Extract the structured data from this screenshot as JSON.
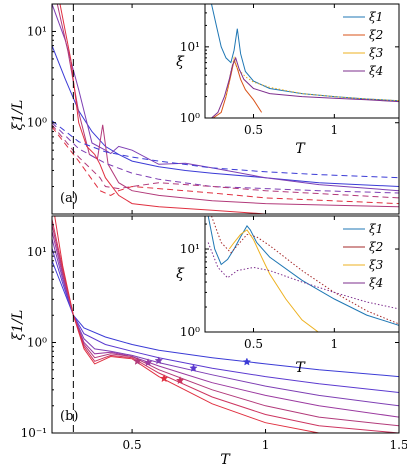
{
  "chart_data": [
    {
      "id": "a",
      "type": "line",
      "panel_label": "(a)",
      "ylabel": "ξ1/L",
      "ylog": true,
      "xlim": [
        0.2,
        1.5
      ],
      "ylim": [
        0.1,
        20
      ],
      "yticks": [
        {
          "value": 10,
          "label": "10¹"
        },
        {
          "value": 1,
          "label": "10⁰"
        }
      ],
      "xticks": [
        0.5,
        1,
        1.5
      ],
      "vline_x": 0.28,
      "series": [
        {
          "style": "solid",
          "color": "#3b3bd6",
          "x": [
            0.2,
            0.25,
            0.3,
            0.35,
            0.4,
            0.45,
            0.5,
            0.6,
            0.7,
            0.8,
            1.0,
            1.2,
            1.5
          ],
          "y": [
            7,
            3.0,
            1.35,
            0.8,
            0.55,
            0.45,
            0.38,
            0.33,
            0.3,
            0.28,
            0.25,
            0.22,
            0.2
          ]
        },
        {
          "style": "solid",
          "color": "#7e3fb4",
          "x": [
            0.2,
            0.25,
            0.3,
            0.35,
            0.4,
            0.42,
            0.45,
            0.5,
            0.6,
            0.7,
            0.8,
            1.0,
            1.2,
            1.5
          ],
          "y": [
            20,
            8,
            2.3,
            0.6,
            0.5,
            0.46,
            0.55,
            0.5,
            0.35,
            0.36,
            0.32,
            0.25,
            0.21,
            0.18
          ]
        },
        {
          "style": "solid",
          "color": "#b23a7a",
          "x": [
            0.22,
            0.26,
            0.3,
            0.34,
            0.37,
            0.39,
            0.41,
            0.45,
            0.5,
            0.6,
            0.8,
            1.0,
            1.5
          ],
          "y": [
            20,
            6,
            1.3,
            0.45,
            0.4,
            0.95,
            0.35,
            0.22,
            0.18,
            0.16,
            0.14,
            0.13,
            0.12
          ]
        },
        {
          "style": "solid",
          "color": "#e03040",
          "x": [
            0.23,
            0.27,
            0.3,
            0.33,
            0.36,
            0.38,
            0.4,
            0.45,
            0.5,
            0.6,
            0.8,
            1.0,
            1.5
          ],
          "y": [
            20,
            5,
            1.0,
            0.55,
            0.45,
            0.35,
            0.25,
            0.16,
            0.13,
            0.12,
            0.11,
            0.1,
            0.1
          ]
        },
        {
          "style": "dashed",
          "color": "#3b3bd6",
          "x": [
            0.2,
            0.3,
            0.4,
            0.5,
            0.6,
            0.8,
            1.0,
            1.2,
            1.5
          ],
          "y": [
            1.05,
            0.62,
            0.48,
            0.42,
            0.38,
            0.32,
            0.29,
            0.27,
            0.25
          ]
        },
        {
          "style": "dashed",
          "color": "#7e3fb4",
          "x": [
            0.2,
            0.3,
            0.4,
            0.5,
            0.6,
            0.8,
            1.0,
            1.2,
            1.5
          ],
          "y": [
            1.0,
            0.52,
            0.36,
            0.28,
            0.24,
            0.2,
            0.19,
            0.18,
            0.17
          ]
        },
        {
          "style": "dashed",
          "color": "#b23a7a",
          "x": [
            0.2,
            0.3,
            0.38,
            0.4,
            0.45,
            0.5,
            0.6,
            0.8,
            1.0,
            1.5
          ],
          "y": [
            0.95,
            0.42,
            0.25,
            0.2,
            0.19,
            0.2,
            0.22,
            0.2,
            0.18,
            0.15
          ]
        },
        {
          "style": "dashed",
          "color": "#e03040",
          "x": [
            0.2,
            0.3,
            0.38,
            0.42,
            0.45,
            0.5,
            0.6,
            0.8,
            1.0,
            1.5
          ],
          "y": [
            0.9,
            0.38,
            0.18,
            0.16,
            0.18,
            0.2,
            0.19,
            0.17,
            0.15,
            0.13
          ]
        }
      ],
      "inset": {
        "xlabel": "T",
        "ylabel": "ξ",
        "ylog": true,
        "xlim": [
          0.2,
          1.4
        ],
        "ylim": [
          1,
          40
        ],
        "yticks": [
          {
            "value": 10,
            "label": "10¹"
          },
          {
            "value": 1,
            "label": "10⁰"
          }
        ],
        "xticks": [
          0.5,
          1
        ],
        "legend_position": "top-right",
        "series": [
          {
            "name": "ξ1",
            "style": "solid",
            "color": "#1f77b4",
            "x": [
              0.24,
              0.27,
              0.3,
              0.33,
              0.36,
              0.38,
              0.4,
              0.42,
              0.45,
              0.5,
              0.6,
              0.8,
              1.0,
              1.2,
              1.4
            ],
            "y": [
              40,
              20,
              10,
              7,
              6,
              9,
              18,
              8,
              4.5,
              3.3,
              2.6,
              2.2,
              2.0,
              1.85,
              1.75
            ]
          },
          {
            "name": "ξ2",
            "style": "solid",
            "color": "#d95319",
            "x": [
              0.25,
              0.3,
              0.33,
              0.36,
              0.38,
              0.4,
              0.42,
              0.45,
              0.5,
              0.55
            ],
            "y": [
              1,
              1.2,
              2,
              4,
              6.5,
              5,
              3.5,
              2.5,
              1.8,
              1.2
            ]
          },
          {
            "name": "ξ3",
            "style": "dotted",
            "color": "#edb120",
            "x": [
              0.33,
              0.36,
              0.38,
              0.4,
              0.45,
              0.5,
              0.6,
              0.8,
              1.0,
              1.2,
              1.4
            ],
            "y": [
              2,
              4.5,
              7,
              5,
              3.8,
              3.2,
              2.7,
              2.2,
              2.0,
              1.85,
              1.75
            ]
          },
          {
            "name": "ξ4",
            "style": "solid",
            "color": "#7e2f8e",
            "x": [
              0.24,
              0.28,
              0.32,
              0.35,
              0.37,
              0.39,
              0.41,
              0.44,
              0.5,
              0.6,
              0.8,
              1.0,
              1.2,
              1.4
            ],
            "y": [
              1,
              1.2,
              2,
              3.5,
              5.5,
              7,
              5,
              3.5,
              2.6,
              2.2,
              2.0,
              1.9,
              1.8,
              1.7
            ]
          }
        ]
      }
    },
    {
      "id": "b",
      "type": "line",
      "panel_label": "(b)",
      "xlabel": "T",
      "ylabel": "ξ1/L",
      "ylog": true,
      "xlim": [
        0.2,
        1.5
      ],
      "ylim": [
        0.1,
        25
      ],
      "yticks": [
        {
          "value": 10,
          "label": "10¹"
        },
        {
          "value": 1,
          "label": "10⁰"
        },
        {
          "value": 0.1,
          "label": "10⁻¹"
        }
      ],
      "xticks": [
        {
          "value": 0.5,
          "label": "0.5"
        },
        {
          "value": 1,
          "label": "1"
        },
        {
          "value": 1.5,
          "label": "1.5"
        }
      ],
      "vline_x": 0.28,
      "series": [
        {
          "style": "solid",
          "color": "#3b3bd6",
          "x": [
            0.2,
            0.24,
            0.28,
            0.32,
            0.4,
            0.5,
            0.6,
            0.8,
            1.0,
            1.2,
            1.5
          ],
          "y": [
            8,
            4,
            2.0,
            1.45,
            1.15,
            0.95,
            0.82,
            0.68,
            0.58,
            0.5,
            0.42
          ]
        },
        {
          "style": "solid",
          "color": "#5b3ad0",
          "x": [
            0.2,
            0.24,
            0.28,
            0.32,
            0.4,
            0.5,
            0.6,
            0.8,
            1.0,
            1.2,
            1.5
          ],
          "y": [
            11,
            4.5,
            2.0,
            1.25,
            0.95,
            0.8,
            0.68,
            0.52,
            0.42,
            0.35,
            0.28
          ]
        },
        {
          "style": "solid",
          "color": "#7e3fb4",
          "x": [
            0.2,
            0.24,
            0.28,
            0.32,
            0.36,
            0.42,
            0.5,
            0.6,
            0.8,
            1.0,
            1.2,
            1.5
          ],
          "y": [
            14,
            5,
            2.0,
            1.1,
            0.85,
            0.8,
            0.72,
            0.6,
            0.44,
            0.33,
            0.26,
            0.2
          ]
        },
        {
          "style": "solid",
          "color": "#9b3aa0",
          "x": [
            0.2,
            0.24,
            0.28,
            0.32,
            0.36,
            0.42,
            0.5,
            0.6,
            0.8,
            1.0,
            1.2,
            1.5
          ],
          "y": [
            17,
            5.5,
            2.0,
            1.0,
            0.75,
            0.78,
            0.7,
            0.55,
            0.36,
            0.26,
            0.2,
            0.15
          ]
        },
        {
          "style": "solid",
          "color": "#b23a7a",
          "x": [
            0.2,
            0.24,
            0.28,
            0.32,
            0.36,
            0.42,
            0.5,
            0.6,
            0.8,
            1.0,
            1.2,
            1.5
          ],
          "y": [
            20,
            6,
            2.0,
            0.95,
            0.68,
            0.75,
            0.7,
            0.5,
            0.3,
            0.2,
            0.15,
            0.12
          ]
        },
        {
          "style": "solid",
          "color": "#cc3560",
          "x": [
            0.2,
            0.24,
            0.28,
            0.32,
            0.36,
            0.42,
            0.5,
            0.6,
            0.8,
            1.0,
            1.2,
            1.5
          ],
          "y": [
            23,
            6.5,
            2.0,
            0.9,
            0.62,
            0.72,
            0.68,
            0.46,
            0.25,
            0.16,
            0.12,
            0.1
          ]
        },
        {
          "style": "solid",
          "color": "#e03040",
          "x": [
            0.21,
            0.24,
            0.28,
            0.32,
            0.36,
            0.42,
            0.5,
            0.6,
            0.8,
            1.0,
            1.2,
            1.5
          ],
          "y": [
            25,
            7,
            2.0,
            0.85,
            0.58,
            0.7,
            0.66,
            0.42,
            0.21,
            0.13,
            0.1,
            0.08
          ]
        }
      ],
      "markers": {
        "symbol": "star",
        "points": [
          {
            "x": 0.93,
            "y": 0.61,
            "color": "#3b3bd6"
          },
          {
            "x": 0.73,
            "y": 0.52,
            "color": "#5b3ad0"
          },
          {
            "x": 0.6,
            "y": 0.63,
            "color": "#7e3fb4"
          },
          {
            "x": 0.56,
            "y": 0.6,
            "color": "#9b3aa0"
          },
          {
            "x": 0.52,
            "y": 0.62,
            "color": "#b23a7a"
          },
          {
            "x": 0.68,
            "y": 0.38,
            "color": "#cc3560"
          },
          {
            "x": 0.62,
            "y": 0.4,
            "color": "#e03040"
          }
        ]
      },
      "inset": {
        "xlabel": "T",
        "ylabel": "ξ",
        "ylog": true,
        "xlim": [
          0.2,
          1.4
        ],
        "ylim": [
          1,
          25
        ],
        "yticks": [
          {
            "value": 10,
            "label": "10¹"
          },
          {
            "value": 1,
            "label": "10⁰"
          }
        ],
        "xticks": [
          0.5,
          1
        ],
        "legend_position": "top-right",
        "series": [
          {
            "name": "ξ1",
            "style": "solid",
            "color": "#1f77b4",
            "x": [
              0.22,
              0.26,
              0.3,
              0.34,
              0.38,
              0.42,
              0.46,
              0.48,
              0.52,
              0.6,
              0.8,
              1.0,
              1.2,
              1.4
            ],
            "y": [
              25,
              10,
              6.5,
              7.5,
              10,
              14,
              19,
              17,
              12,
              8,
              4.2,
              2.5,
              1.6,
              1.2
            ]
          },
          {
            "name": "ξ2",
            "style": "dotted",
            "color": "#a52a2a",
            "x": [
              0.24,
              0.3,
              0.36,
              0.4,
              0.46,
              0.52,
              0.6,
              0.8,
              1.0,
              1.2,
              1.4
            ],
            "y": [
              25,
              12,
              9,
              11,
              15,
              14,
              11,
              5.5,
              3.0,
              1.8,
              1.25
            ]
          },
          {
            "name": "ξ3",
            "style": "solid",
            "color": "#edb120",
            "x": [
              0.35,
              0.38,
              0.42,
              0.46,
              0.5,
              0.55,
              0.6,
              0.7,
              0.8,
              0.9
            ],
            "y": [
              10,
              12,
              15,
              17,
              13,
              8,
              5,
              2.5,
              1.4,
              1
            ]
          },
          {
            "name": "ξ4",
            "style": "dotted",
            "color": "#7e2f8e",
            "x": [
              0.22,
              0.28,
              0.34,
              0.4,
              0.5,
              0.6,
              0.8,
              1.0,
              1.2,
              1.4
            ],
            "y": [
              12,
              6,
              4.5,
              5.5,
              6,
              5.5,
              4,
              3,
              2.3,
              1.9
            ]
          }
        ]
      }
    }
  ]
}
